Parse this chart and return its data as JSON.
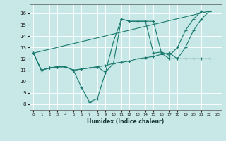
{
  "xlabel": "Humidex (Indice chaleur)",
  "background_color": "#c8e8e8",
  "grid_color": "#ffffff",
  "line_color": "#1a7a6e",
  "xlim": [
    -0.5,
    23.5
  ],
  "ylim": [
    7.5,
    16.8
  ],
  "yticks": [
    8,
    9,
    10,
    11,
    12,
    13,
    14,
    15,
    16
  ],
  "xticks": [
    0,
    1,
    2,
    3,
    4,
    5,
    6,
    7,
    8,
    9,
    10,
    11,
    12,
    13,
    14,
    15,
    16,
    17,
    18,
    19,
    20,
    21,
    22,
    23
  ],
  "line1_x": [
    0,
    1,
    2,
    3,
    4,
    5,
    6,
    7,
    8,
    9,
    10,
    11,
    12,
    13,
    14,
    15,
    16,
    17,
    18,
    19,
    20,
    21,
    22
  ],
  "line1_y": [
    12.5,
    11.0,
    11.2,
    11.3,
    11.3,
    11.0,
    9.5,
    8.2,
    8.5,
    10.8,
    11.6,
    15.5,
    15.3,
    15.3,
    15.3,
    15.3,
    12.5,
    12.0,
    12.0,
    13.0,
    14.5,
    15.5,
    16.2
  ],
  "line2_x": [
    0,
    1,
    2,
    3,
    4,
    5,
    6,
    7,
    8,
    9,
    10,
    11,
    12,
    13,
    14,
    15,
    16,
    17,
    18,
    19,
    20,
    21,
    22
  ],
  "line2_y": [
    12.5,
    11.0,
    11.2,
    11.3,
    11.3,
    11.0,
    11.1,
    11.2,
    11.3,
    11.4,
    11.6,
    11.7,
    11.8,
    12.0,
    12.1,
    12.2,
    12.4,
    12.5,
    12.0,
    12.0,
    12.0,
    12.0,
    12.0
  ],
  "line3_x": [
    0,
    22
  ],
  "line3_y": [
    12.5,
    16.2
  ],
  "line4_x": [
    0,
    1,
    2,
    3,
    4,
    5,
    6,
    7,
    8,
    9,
    10,
    11,
    12,
    13,
    14,
    15,
    16,
    17,
    18,
    19,
    20,
    21,
    22
  ],
  "line4_y": [
    12.5,
    11.0,
    11.2,
    11.3,
    11.3,
    11.0,
    11.1,
    11.2,
    11.3,
    10.8,
    13.5,
    15.5,
    15.3,
    15.3,
    15.3,
    12.5,
    12.6,
    12.3,
    13.0,
    14.5,
    15.5,
    16.2,
    16.2
  ]
}
